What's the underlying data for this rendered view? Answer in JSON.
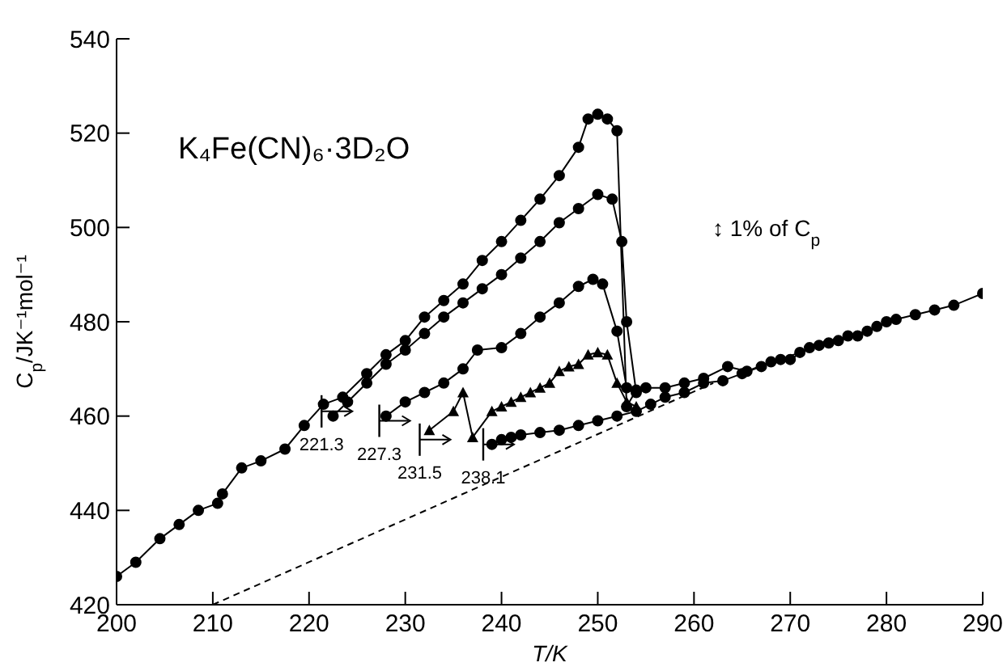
{
  "chart_data": {
    "type": "line",
    "title": "K₄Fe(CN)₆·3D₂O",
    "xlabel": "T/K",
    "ylabel": "C$_{p}$/JK⁻¹mol⁻¹",
    "xlim": [
      200,
      290
    ],
    "xticks": [
      200,
      210,
      220,
      230,
      240,
      250,
      260,
      270,
      280,
      290
    ],
    "ylim": [
      420,
      540
    ],
    "yticks": [
      420,
      440,
      460,
      480,
      500,
      520,
      540
    ],
    "line_style": "solid",
    "annotations": [
      {
        "text": "221.3",
        "x": 221.3,
        "y": 461
      },
      {
        "text": "227.3",
        "x": 227.3,
        "y": 459
      },
      {
        "text": "231.5",
        "x": 231.5,
        "y": 455
      },
      {
        "text": "238.1",
        "x": 238.1,
        "y": 454
      },
      "↕ 1% of C$_{p}$"
    ],
    "series": [
      {
        "color": "#000000",
        "marker": "circle",
        "x": [
          200,
          202,
          204.5,
          206.5,
          208.5,
          210.5,
          211,
          213,
          215,
          217.5,
          219.5,
          221.5,
          223.5,
          226,
          228,
          230,
          232,
          234,
          236,
          238,
          240,
          242,
          244,
          246,
          248,
          249,
          250,
          251,
          252,
          253,
          254,
          255,
          257,
          259,
          261,
          263.5,
          265.5,
          268,
          270,
          272,
          274,
          276,
          278,
          280
        ],
        "values": [
          426,
          429,
          434,
          437,
          440,
          441.5,
          443.5,
          449,
          450.5,
          453,
          458,
          462.5,
          464,
          469,
          473,
          476,
          481,
          484.5,
          488,
          493,
          497,
          501.5,
          506,
          511,
          517,
          523,
          524,
          523,
          520.5,
          462,
          465.5,
          466,
          466,
          467,
          468,
          470.5,
          469.5,
          471.5,
          472,
          474.5,
          475.5,
          477,
          478,
          480
        ]
      },
      {
        "color": "#000000",
        "marker": "circle",
        "x": [
          222.5,
          224,
          226,
          228,
          230,
          232,
          234,
          236,
          238,
          240,
          242,
          244,
          246,
          248,
          250,
          251.5,
          252.5,
          253,
          254
        ],
        "values": [
          460,
          463,
          467,
          471,
          474,
          477.5,
          481,
          484,
          487,
          490,
          493.5,
          497,
          501,
          504,
          507,
          506,
          497,
          480,
          465
        ]
      },
      {
        "color": "#000000",
        "marker": "circle",
        "x": [
          228,
          230,
          232,
          234,
          236,
          237.5,
          240,
          242,
          244,
          246,
          248,
          249.5,
          250.5,
          252,
          253
        ],
        "values": [
          460,
          463,
          465,
          467,
          470,
          474,
          474.5,
          477.5,
          481,
          484,
          487.5,
          489,
          488,
          478,
          466
        ]
      },
      {
        "color": "#000000",
        "marker": "triangle",
        "x": [
          232.5,
          235,
          236,
          237,
          239,
          240,
          241,
          242,
          243,
          244,
          245,
          246,
          247,
          248,
          249,
          250,
          251,
          252,
          253,
          254
        ],
        "values": [
          457,
          461,
          465,
          455.5,
          461,
          462,
          463,
          464,
          465,
          466,
          467,
          469.5,
          470.5,
          471,
          473,
          473.5,
          473,
          467,
          463,
          462
        ]
      },
      {
        "color": "#000000",
        "marker": "circle",
        "x": [
          239,
          240,
          241,
          242,
          244,
          246,
          248,
          250,
          252,
          254,
          255.5,
          257,
          259,
          261,
          263,
          265,
          267,
          269,
          271,
          273,
          275,
          277,
          279,
          281,
          283,
          285,
          287,
          290
        ],
        "values": [
          454,
          455,
          455.5,
          456,
          456.5,
          457,
          458,
          459,
          460,
          461,
          462.5,
          464,
          465,
          467,
          467.5,
          469,
          470.5,
          472,
          473.5,
          475,
          476,
          477,
          479,
          480.5,
          481.5,
          482.5,
          483.5,
          486
        ]
      },
      {
        "color": "#000000",
        "marker": "none",
        "line_style": "dashed",
        "x": [
          210,
          262
        ],
        "values": [
          420,
          467
        ]
      }
    ]
  }
}
